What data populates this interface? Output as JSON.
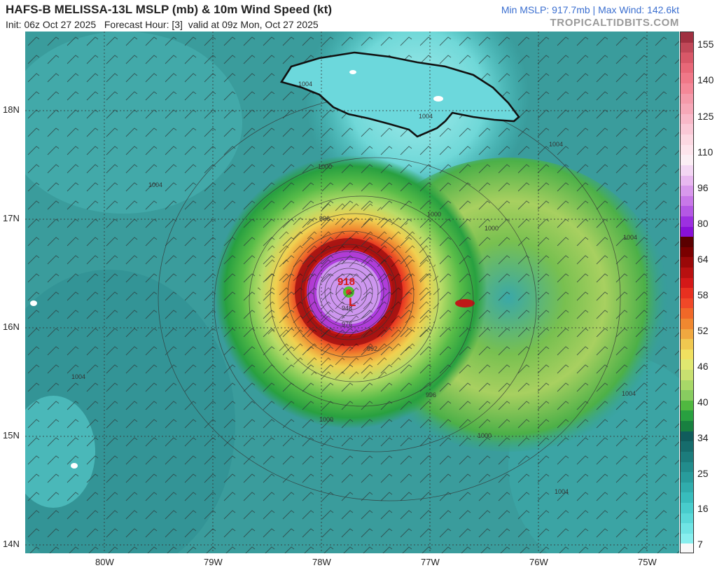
{
  "header": {
    "title": "HAFS-B MELISSA-13L MSLP (mb) & 10m Wind Speed (kt)",
    "init": "Init: 06z Oct 27 2025",
    "forecast_hour": "Forecast Hour: [3]",
    "valid": "valid at 09z Mon, Oct 27 2025",
    "stats": "Min MSLP: 917.7mb | Max Wind: 142.6kt",
    "brand": "TROPICALTIDBITS.COM"
  },
  "map": {
    "lat_labels": [
      "18N",
      "17N",
      "16N",
      "15N",
      "14N"
    ],
    "lon_labels": [
      "80W",
      "79W",
      "78W",
      "77W",
      "76W",
      "75W"
    ],
    "storm_center_label": "918",
    "center_symbol": "L",
    "pressure_labels": [
      "1004",
      "1004",
      "1004",
      "1004",
      "1000",
      "1000",
      "1000",
      "996",
      "996",
      "992",
      "948",
      "976",
      "1004",
      "1000",
      "1000",
      "1004",
      "1004",
      "1004"
    ]
  },
  "colorbar": {
    "labels": [
      "155",
      "140",
      "125",
      "110",
      "96",
      "80",
      "64",
      "58",
      "52",
      "46",
      "40",
      "34",
      "25",
      "16",
      "7"
    ],
    "colors": [
      "#a03040",
      "#c04858",
      "#d85868",
      "#e86878",
      "#f07888",
      "#f48898",
      "#f49aaa",
      "#f6a8b8",
      "#f8b8c8",
      "#fac8d6",
      "#fcd8e2",
      "#fde4ec",
      "#fbeef4",
      "#f3d6f3",
      "#e8b8f0",
      "#d898ec",
      "#c878e8",
      "#b458e4",
      "#9c30e0",
      "#8810d8",
      "#5a0000",
      "#7a0000",
      "#9a0808",
      "#b81010",
      "#d41818",
      "#e83020",
      "#f04828",
      "#f06828",
      "#f08830",
      "#f0a840",
      "#f0c850",
      "#f0e060",
      "#e0e870",
      "#c8e070",
      "#a8d868",
      "#88cc60",
      "#50b840",
      "#28a040",
      "#188040",
      "#105c5c",
      "#166c6c",
      "#1c7c7c",
      "#228c8c",
      "#289c9c",
      "#30acac",
      "#38bcbc",
      "#48cccc",
      "#5ad8d8",
      "#70e4e4",
      "#88eeee",
      "#f8f8f8"
    ]
  }
}
